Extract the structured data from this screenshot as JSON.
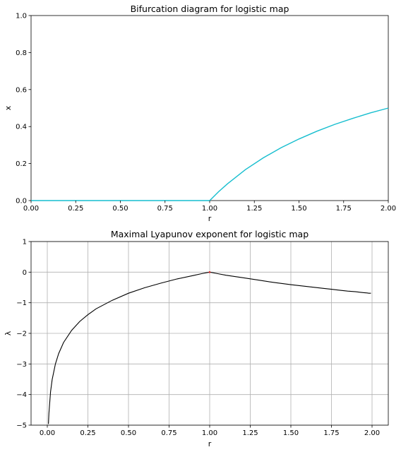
{
  "chart_data": [
    {
      "type": "scatter",
      "title": "Bifurcation diagram for logistic map",
      "xlabel": "r",
      "ylabel": "x",
      "xlim": [
        0,
        2
      ],
      "ylim": [
        0,
        1
      ],
      "grid": false,
      "xticks": [
        "0.00",
        "0.25",
        "0.50",
        "0.75",
        "1.00",
        "1.25",
        "1.50",
        "1.75",
        "2.00"
      ],
      "yticks": [
        "0.0",
        "0.2",
        "0.4",
        "0.6",
        "0.8",
        "1.0"
      ],
      "series": [
        {
          "color": "#17becf",
          "x": [
            0,
            0.25,
            0.5,
            0.75,
            1.0,
            1.05,
            1.1,
            1.2,
            1.3,
            1.4,
            1.5,
            1.6,
            1.7,
            1.8,
            1.9,
            2.0
          ],
          "y": [
            0,
            0,
            0,
            0,
            0,
            0.048,
            0.091,
            0.167,
            0.231,
            0.286,
            0.333,
            0.375,
            0.412,
            0.444,
            0.474,
            0.5
          ]
        }
      ]
    },
    {
      "type": "line",
      "title": "Maximal Lyapunov exponent for logistic map",
      "xlabel": "r",
      "ylabel": "λ",
      "xlim": [
        -0.1,
        2.1
      ],
      "ylim": [
        -5,
        1
      ],
      "grid": true,
      "xticks": [
        "0.00",
        "0.25",
        "0.50",
        "0.75",
        "1.00",
        "1.25",
        "1.50",
        "1.75",
        "2.00"
      ],
      "yticks": [
        "−5",
        "−4",
        "−3",
        "−2",
        "−1",
        "0",
        "1"
      ],
      "line_color": "#000000",
      "zero_marker_color": "#d62728",
      "x": [
        0.007,
        0.01,
        0.02,
        0.03,
        0.05,
        0.07,
        0.1,
        0.15,
        0.2,
        0.25,
        0.3,
        0.4,
        0.5,
        0.6,
        0.7,
        0.8,
        0.9,
        0.95,
        1.0,
        1.05,
        1.1,
        1.2,
        1.3,
        1.4,
        1.5,
        1.6,
        1.7,
        1.75,
        1.8,
        1.85,
        1.9,
        1.93,
        1.95,
        1.97,
        1.98,
        1.99,
        1.993
      ],
      "y": [
        -4.96,
        -4.61,
        -3.91,
        -3.51,
        -3.0,
        -2.66,
        -2.3,
        -1.9,
        -1.61,
        -1.39,
        -1.2,
        -0.92,
        -0.69,
        -0.51,
        -0.36,
        -0.22,
        -0.11,
        -0.05,
        0.0,
        -0.05,
        -0.1,
        -0.18,
        -0.26,
        -0.34,
        -0.41,
        -0.47,
        -0.53,
        -0.56,
        -0.59,
        -0.62,
        -0.64,
        -0.66,
        -0.67,
        -0.68,
        -0.69,
        -0.69,
        -0.69
      ]
    }
  ]
}
